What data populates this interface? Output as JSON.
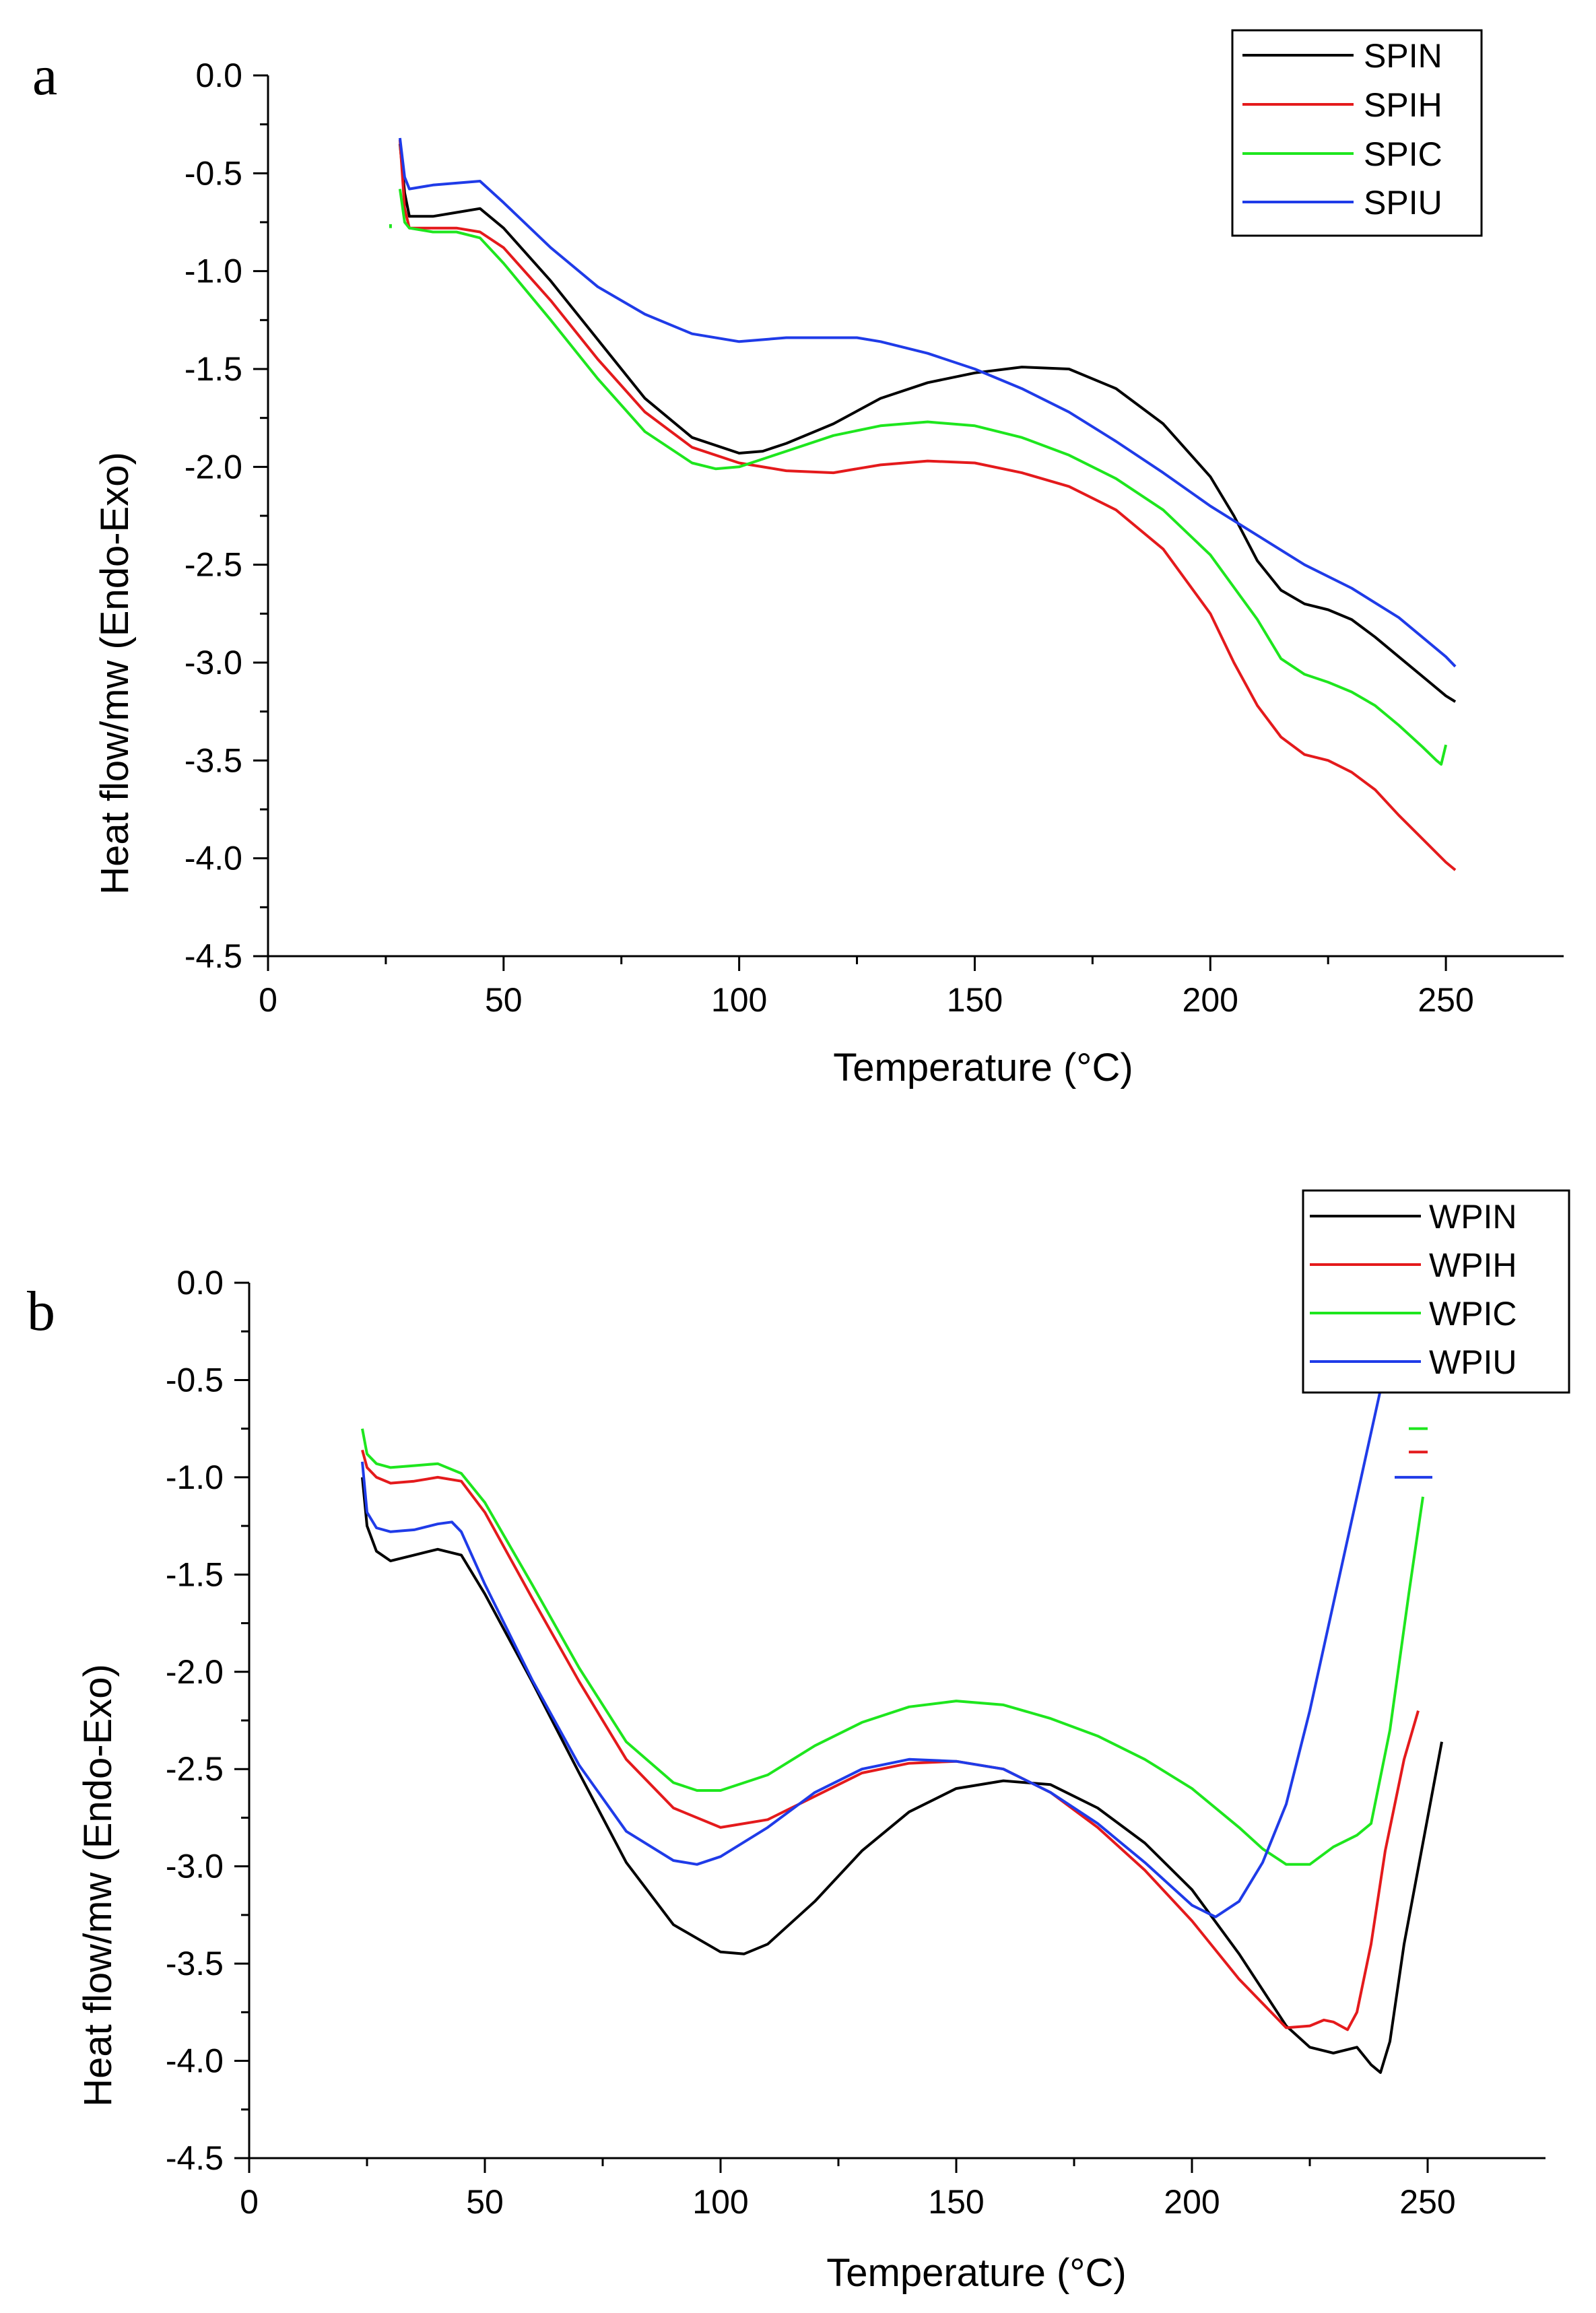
{
  "chart_data": [
    {
      "type": "line",
      "panel_label": "a",
      "xlabel": "Temperature (°C)",
      "ylabel": "Heat flow/mw (Endo-Exo)",
      "xlim": [
        0,
        275
      ],
      "ylim": [
        -4.5,
        0.0
      ],
      "x_ticks": [
        0,
        50,
        100,
        150,
        200,
        250
      ],
      "x_tick_labels": [
        "0",
        "50",
        "100",
        "150",
        "200",
        "250"
      ],
      "y_ticks": [
        0.0,
        -0.5,
        -1.0,
        -1.5,
        -2.0,
        -2.5,
        -3.0,
        -3.5,
        -4.0,
        -4.5
      ],
      "y_tick_labels": [
        "0.0",
        "-0.5",
        "-1.0",
        "-1.5",
        "-2.0",
        "-2.5",
        "-3.0",
        "-3.5",
        "-4.0",
        "-4.5"
      ],
      "grid": false,
      "legend_position": "top-right",
      "series": [
        {
          "name": "SPIN",
          "color": "#000000",
          "x": [
            28,
            29,
            30,
            35,
            40,
            45,
            50,
            60,
            70,
            80,
            90,
            100,
            105,
            110,
            120,
            130,
            140,
            150,
            160,
            170,
            180,
            190,
            200,
            205,
            210,
            215,
            220,
            225,
            230,
            235,
            240,
            245,
            250,
            252
          ],
          "y": [
            -0.35,
            -0.6,
            -0.72,
            -0.72,
            -0.7,
            -0.68,
            -0.78,
            -1.05,
            -1.35,
            -1.65,
            -1.85,
            -1.93,
            -1.92,
            -1.88,
            -1.78,
            -1.65,
            -1.57,
            -1.52,
            -1.49,
            -1.5,
            -1.6,
            -1.78,
            -2.05,
            -2.25,
            -2.48,
            -2.63,
            -2.7,
            -2.73,
            -2.78,
            -2.87,
            -2.97,
            -3.07,
            -3.17,
            -3.2
          ]
        },
        {
          "name": "SPIH",
          "color": "#e41a1c",
          "x": [
            28,
            29,
            30,
            35,
            40,
            45,
            50,
            60,
            70,
            80,
            90,
            100,
            110,
            120,
            125,
            130,
            140,
            150,
            160,
            170,
            180,
            190,
            200,
            205,
            210,
            215,
            220,
            225,
            230,
            235,
            240,
            245,
            250,
            252
          ],
          "y": [
            -0.33,
            -0.68,
            -0.78,
            -0.78,
            -0.78,
            -0.8,
            -0.88,
            -1.15,
            -1.45,
            -1.72,
            -1.9,
            -1.98,
            -2.02,
            -2.03,
            -2.01,
            -1.99,
            -1.97,
            -1.98,
            -2.03,
            -2.1,
            -2.22,
            -2.42,
            -2.75,
            -3.0,
            -3.22,
            -3.38,
            -3.47,
            -3.5,
            -3.56,
            -3.65,
            -3.78,
            -3.9,
            -4.02,
            -4.06
          ]
        },
        {
          "name": "SPIC",
          "color": "#1ee61e",
          "x": [
            28,
            29,
            30,
            35,
            40,
            45,
            50,
            60,
            70,
            80,
            90,
            95,
            100,
            110,
            120,
            130,
            140,
            150,
            160,
            170,
            180,
            190,
            200,
            210,
            215,
            220,
            225,
            230,
            235,
            240,
            245,
            248,
            249,
            250
          ],
          "y": [
            -0.58,
            -0.75,
            -0.78,
            -0.8,
            -0.8,
            -0.83,
            -0.96,
            -1.25,
            -1.55,
            -1.82,
            -1.98,
            -2.01,
            -2.0,
            -1.92,
            -1.84,
            -1.79,
            -1.77,
            -1.79,
            -1.85,
            -1.94,
            -2.06,
            -2.22,
            -2.45,
            -2.78,
            -2.98,
            -3.06,
            -3.1,
            -3.15,
            -3.22,
            -3.32,
            -3.43,
            -3.5,
            -3.52,
            -3.42
          ]
        },
        {
          "name": "SPIU",
          "color": "#1f3be8",
          "x": [
            28,
            29,
            30,
            35,
            40,
            45,
            50,
            60,
            70,
            80,
            90,
            100,
            110,
            120,
            125,
            130,
            140,
            150,
            160,
            170,
            180,
            190,
            200,
            210,
            220,
            230,
            240,
            245,
            250,
            252
          ],
          "y": [
            -0.32,
            -0.52,
            -0.58,
            -0.56,
            -0.55,
            -0.54,
            -0.65,
            -0.88,
            -1.08,
            -1.22,
            -1.32,
            -1.36,
            -1.34,
            -1.34,
            -1.34,
            -1.36,
            -1.42,
            -1.5,
            -1.6,
            -1.72,
            -1.87,
            -2.03,
            -2.2,
            -2.35,
            -2.5,
            -2.62,
            -2.77,
            -2.87,
            -2.97,
            -3.02
          ]
        }
      ],
      "stray_marks": [
        {
          "color": "#1ee61e",
          "x": [
            26,
            26
          ],
          "y": [
            -0.76,
            -0.78
          ]
        }
      ]
    },
    {
      "type": "line",
      "panel_label": "b",
      "xlabel": "Temperature (°C)",
      "ylabel": "Heat flow/mw (Endo-Exo)",
      "xlim": [
        0,
        275
      ],
      "ylim": [
        -4.5,
        0.0
      ],
      "x_ticks": [
        0,
        50,
        100,
        150,
        200,
        250
      ],
      "x_tick_labels": [
        "0",
        "50",
        "100",
        "150",
        "200",
        "250"
      ],
      "y_ticks": [
        0.0,
        -0.5,
        -1.0,
        -1.5,
        -2.0,
        -2.5,
        -3.0,
        -3.5,
        -4.0,
        -4.5
      ],
      "y_tick_labels": [
        "0.0",
        "-0.5",
        "-1.0",
        "-1.5",
        "-2.0",
        "-2.5",
        "-3.0",
        "-3.5",
        "-4.0",
        "-4.5"
      ],
      "grid": false,
      "legend_position": "top-right",
      "series": [
        {
          "name": "WPIN",
          "color": "#000000",
          "x": [
            24,
            25,
            27,
            30,
            35,
            40,
            45,
            50,
            60,
            70,
            80,
            90,
            100,
            105,
            110,
            120,
            130,
            140,
            150,
            160,
            170,
            180,
            190,
            200,
            210,
            220,
            225,
            230,
            235,
            238,
            240,
            242,
            245,
            250,
            253
          ],
          "y": [
            -1.0,
            -1.25,
            -1.38,
            -1.43,
            -1.4,
            -1.37,
            -1.4,
            -1.6,
            -2.05,
            -2.52,
            -2.98,
            -3.3,
            -3.44,
            -3.45,
            -3.4,
            -3.18,
            -2.92,
            -2.72,
            -2.6,
            -2.56,
            -2.58,
            -2.7,
            -2.88,
            -3.12,
            -3.45,
            -3.82,
            -3.93,
            -3.96,
            -3.93,
            -4.02,
            -4.06,
            -3.9,
            -3.4,
            -2.75,
            -2.36
          ]
        },
        {
          "name": "WPIH",
          "color": "#e41a1c",
          "x": [
            24,
            25,
            27,
            30,
            35,
            40,
            45,
            50,
            60,
            70,
            80,
            90,
            100,
            110,
            120,
            130,
            140,
            150,
            160,
            170,
            180,
            190,
            200,
            210,
            220,
            225,
            228,
            230,
            233,
            235,
            238,
            241,
            245,
            248
          ],
          "y": [
            -0.86,
            -0.95,
            -1.0,
            -1.03,
            -1.02,
            -1.0,
            -1.02,
            -1.18,
            -1.62,
            -2.05,
            -2.45,
            -2.7,
            -2.8,
            -2.76,
            -2.64,
            -2.52,
            -2.47,
            -2.46,
            -2.5,
            -2.62,
            -2.8,
            -3.02,
            -3.28,
            -3.58,
            -3.83,
            -3.82,
            -3.79,
            -3.8,
            -3.84,
            -3.75,
            -3.4,
            -2.92,
            -2.45,
            -2.2
          ]
        },
        {
          "name": "WPIC",
          "color": "#1ee61e",
          "x": [
            24,
            25,
            27,
            30,
            35,
            40,
            45,
            50,
            60,
            70,
            80,
            90,
            95,
            100,
            110,
            120,
            130,
            140,
            150,
            160,
            170,
            180,
            190,
            200,
            210,
            215,
            220,
            225,
            230,
            235,
            238,
            242,
            246,
            249
          ],
          "y": [
            -0.75,
            -0.88,
            -0.93,
            -0.95,
            -0.94,
            -0.93,
            -0.98,
            -1.13,
            -1.55,
            -1.98,
            -2.36,
            -2.57,
            -2.61,
            -2.61,
            -2.53,
            -2.38,
            -2.26,
            -2.18,
            -2.15,
            -2.17,
            -2.24,
            -2.33,
            -2.45,
            -2.6,
            -2.8,
            -2.91,
            -2.99,
            -2.99,
            -2.9,
            -2.84,
            -2.78,
            -2.3,
            -1.6,
            -1.1
          ]
        },
        {
          "name": "WPIU",
          "color": "#1f3be8",
          "x": [
            24,
            25,
            27,
            30,
            35,
            40,
            43,
            45,
            50,
            60,
            70,
            80,
            90,
            95,
            100,
            110,
            120,
            130,
            140,
            150,
            160,
            170,
            180,
            190,
            200,
            205,
            210,
            215,
            220,
            225,
            230,
            235,
            240
          ],
          "y": [
            -0.92,
            -1.18,
            -1.26,
            -1.28,
            -1.27,
            -1.24,
            -1.23,
            -1.28,
            -1.55,
            -2.04,
            -2.48,
            -2.82,
            -2.97,
            -2.99,
            -2.95,
            -2.8,
            -2.62,
            -2.5,
            -2.45,
            -2.46,
            -2.5,
            -2.62,
            -2.78,
            -2.98,
            -3.2,
            -3.26,
            -3.18,
            -2.98,
            -2.68,
            -2.2,
            -1.65,
            -1.1,
            -0.55
          ]
        }
      ],
      "stray_marks": [
        {
          "color": "#1ee61e",
          "x": [
            246,
            250
          ],
          "y": [
            -0.75,
            -0.75
          ]
        },
        {
          "color": "#e41a1c",
          "x": [
            246,
            250
          ],
          "y": [
            -0.87,
            -0.87
          ]
        },
        {
          "color": "#1f3be8",
          "x": [
            243,
            251
          ],
          "y": [
            -1.0,
            -1.0
          ]
        }
      ]
    }
  ]
}
